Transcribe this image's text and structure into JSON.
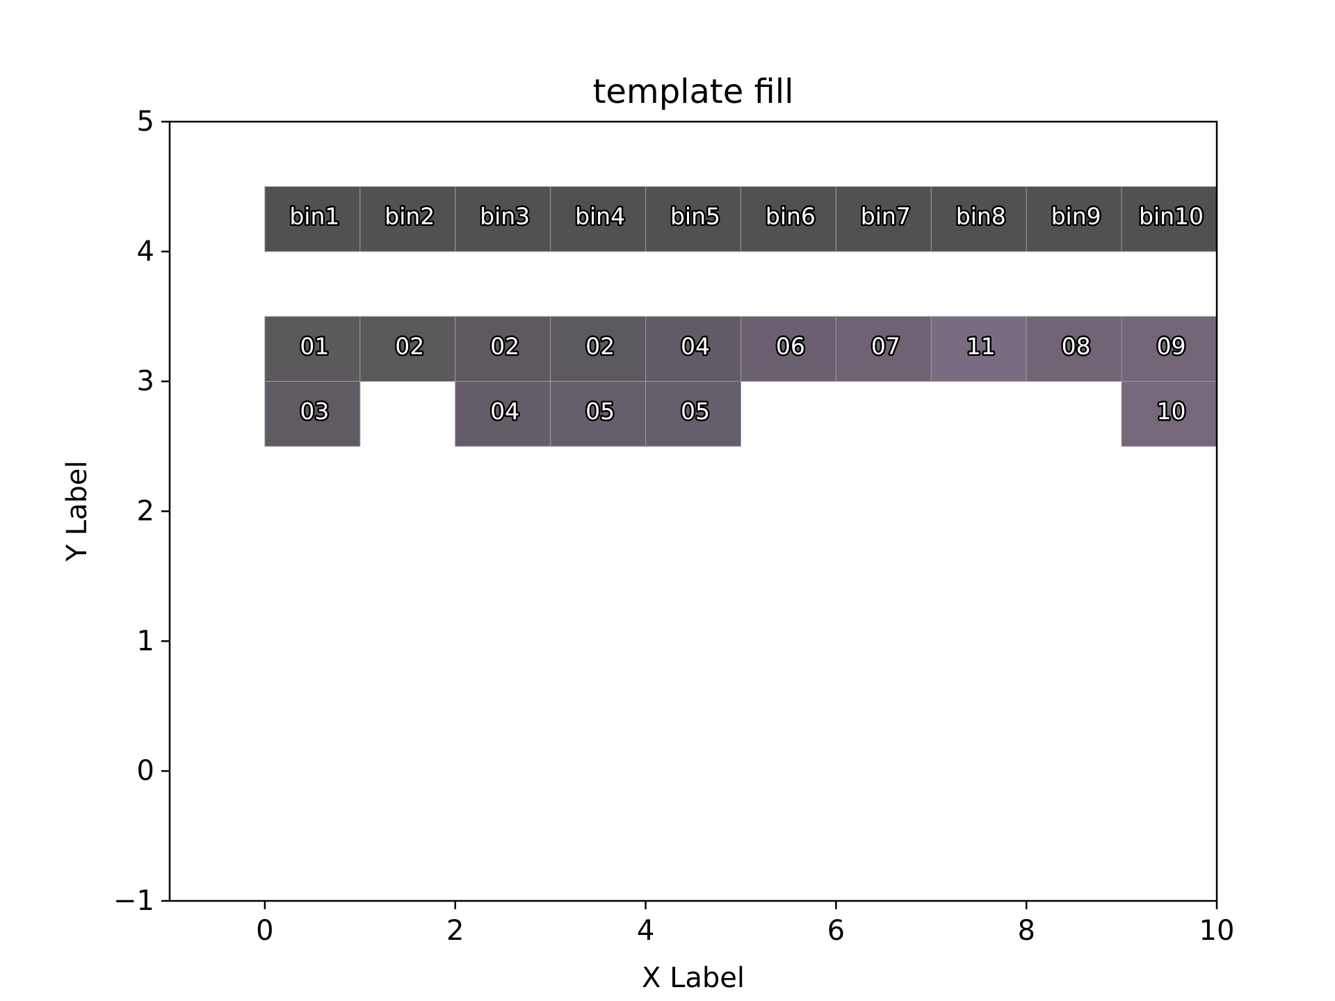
{
  "chart_data": {
    "type": "heatmap",
    "title": "template fill",
    "xlabel": "X Label",
    "ylabel": "Y Label",
    "xlim": [
      -1,
      10
    ],
    "ylim": [
      -1,
      5
    ],
    "xticks": [
      "0",
      "2",
      "4",
      "6",
      "8",
      "10"
    ],
    "yticks": [
      "−1",
      "0",
      "1",
      "2",
      "3",
      "4",
      "5"
    ],
    "grid": false,
    "header_row": {
      "y_range": [
        4.0,
        4.5
      ],
      "color": "#515151",
      "cells": [
        {
          "x": 0,
          "label": "bin1"
        },
        {
          "x": 1,
          "label": "bin2"
        },
        {
          "x": 2,
          "label": "bin3"
        },
        {
          "x": 3,
          "label": "bin4"
        },
        {
          "x": 4,
          "label": "bin5"
        },
        {
          "x": 5,
          "label": "bin6"
        },
        {
          "x": 6,
          "label": "bin7"
        },
        {
          "x": 7,
          "label": "bin8"
        },
        {
          "x": 8,
          "label": "bin9"
        },
        {
          "x": 9,
          "label": "bin10"
        }
      ]
    },
    "value_cells": [
      {
        "x": 0,
        "y": 3.0,
        "label": "01",
        "color": "#5c595d"
      },
      {
        "x": 1,
        "y": 3.0,
        "label": "02",
        "color": "#5a585b"
      },
      {
        "x": 2,
        "y": 3.0,
        "label": "02",
        "color": "#5d595f"
      },
      {
        "x": 3,
        "y": 3.0,
        "label": "02",
        "color": "#5d5960"
      },
      {
        "x": 4,
        "y": 3.0,
        "label": "04",
        "color": "#625b65"
      },
      {
        "x": 5,
        "y": 3.0,
        "label": "06",
        "color": "#6b6070"
      },
      {
        "x": 6,
        "y": 3.0,
        "label": "07",
        "color": "#6e6373"
      },
      {
        "x": 7,
        "y": 3.0,
        "label": "11",
        "color": "#7a6c80"
      },
      {
        "x": 8,
        "y": 3.0,
        "label": "08",
        "color": "#706475"
      },
      {
        "x": 9,
        "y": 3.0,
        "label": "09",
        "color": "#726677"
      },
      {
        "x": 0,
        "y": 2.5,
        "label": "03",
        "color": "#605b62"
      },
      {
        "x": 2,
        "y": 2.5,
        "label": "04",
        "color": "#645c67"
      },
      {
        "x": 3,
        "y": 2.5,
        "label": "05",
        "color": "#675e6b"
      },
      {
        "x": 4,
        "y": 2.5,
        "label": "05",
        "color": "#675e6b"
      },
      {
        "x": 9,
        "y": 2.5,
        "label": "10",
        "color": "#75687a"
      }
    ]
  }
}
